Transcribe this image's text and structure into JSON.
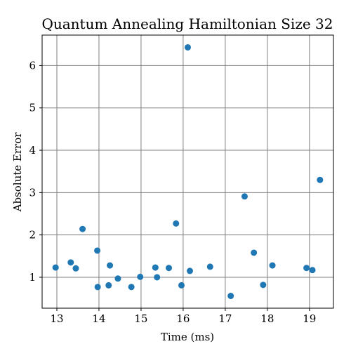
{
  "chart_data": {
    "type": "scatter",
    "title": "Quantum Annealing Hamiltonian Size 32",
    "xlabel": "Time (ms)",
    "ylabel": "Absolute Error",
    "xlim": [
      12.65,
      19.57
    ],
    "ylim": [
      0.27,
      6.72
    ],
    "xticks": [
      13,
      14,
      15,
      16,
      17,
      18,
      19
    ],
    "yticks": [
      1,
      2,
      3,
      4,
      5,
      6
    ],
    "grid": true,
    "marker_color": "#1f77b4",
    "points": [
      {
        "x": 12.97,
        "y": 1.23
      },
      {
        "x": 13.33,
        "y": 1.35
      },
      {
        "x": 13.45,
        "y": 1.21
      },
      {
        "x": 13.61,
        "y": 2.14
      },
      {
        "x": 13.96,
        "y": 1.63
      },
      {
        "x": 13.97,
        "y": 0.77
      },
      {
        "x": 14.23,
        "y": 0.81
      },
      {
        "x": 14.26,
        "y": 1.28
      },
      {
        "x": 14.45,
        "y": 0.97
      },
      {
        "x": 14.77,
        "y": 0.77
      },
      {
        "x": 14.98,
        "y": 1.01
      },
      {
        "x": 15.34,
        "y": 1.23
      },
      {
        "x": 15.38,
        "y": 1.0
      },
      {
        "x": 15.66,
        "y": 1.22
      },
      {
        "x": 15.83,
        "y": 2.27
      },
      {
        "x": 15.96,
        "y": 0.81
      },
      {
        "x": 16.11,
        "y": 6.43
      },
      {
        "x": 16.16,
        "y": 1.15
      },
      {
        "x": 16.64,
        "y": 1.25
      },
      {
        "x": 17.13,
        "y": 0.56
      },
      {
        "x": 17.46,
        "y": 2.91
      },
      {
        "x": 17.68,
        "y": 1.58
      },
      {
        "x": 17.9,
        "y": 0.82
      },
      {
        "x": 18.12,
        "y": 1.28
      },
      {
        "x": 18.93,
        "y": 1.22
      },
      {
        "x": 19.07,
        "y": 1.17
      },
      {
        "x": 19.25,
        "y": 3.3
      }
    ]
  }
}
